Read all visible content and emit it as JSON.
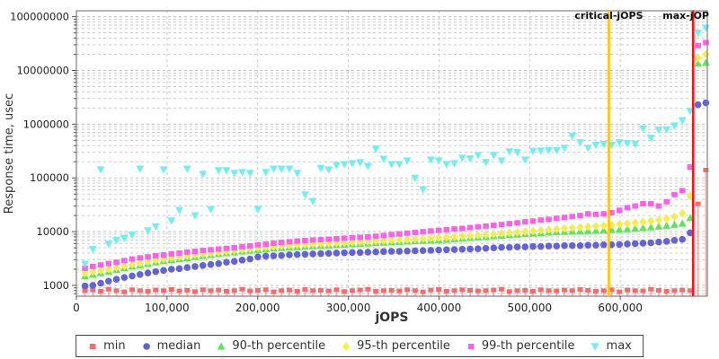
{
  "chart_data": {
    "type": "scatter",
    "title": "",
    "xlabel": "jOPS",
    "ylabel": "Response time, usec",
    "grid": true,
    "legend_position": "bottom",
    "xlim": [
      0,
      696000
    ],
    "ylim_log": [
      630,
      129000000
    ],
    "x_ticks": [
      {
        "value": 0,
        "label": "0"
      },
      {
        "value": 100000,
        "label": "100,000"
      },
      {
        "value": 200000,
        "label": "200,000"
      },
      {
        "value": 300000,
        "label": "300,000"
      },
      {
        "value": 400000,
        "label": "400,000"
      },
      {
        "value": 500000,
        "label": "500,000"
      },
      {
        "value": 600000,
        "label": "600,000"
      }
    ],
    "y_ticks": [
      {
        "value": 1000,
        "label": "1000"
      },
      {
        "value": 10000,
        "label": "10000"
      },
      {
        "value": 100000,
        "label": "100000"
      },
      {
        "value": 1000000,
        "label": "1000000"
      },
      {
        "value": 10000000,
        "label": "10000000"
      },
      {
        "value": 100000000,
        "label": "100000000"
      }
    ],
    "vertical_lines": [
      {
        "name": "critical-jops",
        "label": "critical-jOPS",
        "x": 587400,
        "color": "#FFC400"
      },
      {
        "name": "max-jops",
        "label": "max-jOP",
        "x": 680400,
        "color": "#FF1414"
      }
    ],
    "jops": [
      9500,
      18170,
      26840,
      35510,
      44180,
      52850,
      61520,
      70190,
      78860,
      87530,
      96200,
      104870,
      113540,
      122210,
      130880,
      139550,
      148220,
      156890,
      165560,
      174230,
      182900,
      191570,
      200240,
      208910,
      217580,
      226250,
      234920,
      243590,
      252260,
      260930,
      269600,
      278270,
      286940,
      295610,
      304280,
      312950,
      321620,
      330290,
      338960,
      347630,
      356300,
      364970,
      373640,
      382310,
      390980,
      399650,
      408320,
      416990,
      425660,
      434330,
      443000,
      451670,
      460340,
      469010,
      477680,
      486350,
      495020,
      503690,
      512360,
      521030,
      529700,
      538370,
      547040,
      555710,
      564380,
      573050,
      581720,
      590390,
      599060,
      607730,
      616400,
      625070,
      633740,
      642410,
      651080,
      659750,
      668420,
      677090,
      685760,
      694430
    ],
    "series": [
      {
        "name": "min",
        "marker": "square-stem",
        "color": "#FA6A6A",
        "values": [
          800,
          820,
          780,
          850,
          800,
          760,
          830,
          800,
          780,
          820,
          800,
          840,
          790,
          810,
          770,
          830,
          800,
          820,
          780,
          800,
          850,
          790,
          810,
          830,
          760,
          800,
          820,
          780,
          840,
          800,
          810,
          790,
          830,
          770,
          800,
          820,
          850,
          780,
          800,
          810,
          790,
          830,
          800,
          760,
          820,
          840,
          780,
          800,
          830,
          810,
          790,
          800,
          820,
          850,
          770,
          800,
          810,
          780,
          830,
          800,
          790,
          820,
          800,
          840,
          810,
          780,
          800,
          830,
          760,
          820,
          800,
          790,
          850,
          810,
          780,
          800,
          820,
          800,
          33000,
          140000
        ]
      },
      {
        "name": "median",
        "marker": "circle",
        "color": "#6262D9",
        "values": [
          980,
          1000,
          1100,
          1200,
          1300,
          1400,
          1500,
          1600,
          1700,
          1800,
          1900,
          2000,
          2050,
          2150,
          2250,
          2350,
          2450,
          2550,
          2700,
          2800,
          2950,
          3100,
          3400,
          3500,
          3550,
          3600,
          3700,
          3750,
          3800,
          3850,
          3900,
          3950,
          4000,
          4050,
          4100,
          4100,
          4150,
          4200,
          4250,
          4300,
          4300,
          4350,
          4400,
          4450,
          4500,
          4550,
          4600,
          4650,
          4700,
          4750,
          4800,
          4900,
          5000,
          5100,
          5100,
          5200,
          5200,
          5300,
          5300,
          5400,
          5400,
          5500,
          5500,
          5500,
          5600,
          5600,
          5700,
          5700,
          5800,
          5900,
          6000,
          6100,
          6200,
          6400,
          6600,
          6900,
          7200,
          9500,
          2300000,
          2500000
        ]
      },
      {
        "name": "90-th percentile",
        "marker": "triangle-up",
        "color": "#5CE65C",
        "values": [
          1490,
          1600,
          1700,
          1800,
          1950,
          2100,
          2250,
          2400,
          2550,
          2700,
          2850,
          3000,
          3100,
          3250,
          3400,
          3550,
          3700,
          3850,
          4000,
          4150,
          4300,
          4450,
          4600,
          4750,
          4900,
          5000,
          5100,
          5200,
          5300,
          5400,
          5500,
          5600,
          5700,
          5800,
          5900,
          6000,
          6100,
          6200,
          6300,
          6400,
          6500,
          6600,
          6700,
          6800,
          6900,
          7000,
          7100,
          7300,
          7500,
          7700,
          7900,
          8100,
          8300,
          8500,
          8700,
          8900,
          9100,
          9300,
          9500,
          9700,
          9900,
          10000,
          10200,
          10300,
          10400,
          10500,
          10600,
          10800,
          11000,
          11200,
          11500,
          11800,
          12100,
          12500,
          13000,
          13500,
          14200,
          18000,
          13500000,
          14000000
        ]
      },
      {
        "name": "95-th percentile",
        "marker": "diamond",
        "color": "#EFEF4F",
        "values": [
          1700,
          1800,
          1900,
          2000,
          2150,
          2300,
          2450,
          2600,
          2750,
          2950,
          3100,
          3250,
          3400,
          3550,
          3700,
          3850,
          4000,
          4150,
          4300,
          4500,
          4650,
          4800,
          5000,
          5150,
          5300,
          5450,
          5550,
          5650,
          5750,
          5850,
          5950,
          6050,
          6150,
          6250,
          6350,
          6450,
          6550,
          6700,
          6800,
          6900,
          7000,
          7100,
          7250,
          7400,
          7550,
          7700,
          7850,
          8000,
          8200,
          8400,
          8600,
          8800,
          9000,
          9300,
          9500,
          9700,
          10000,
          10300,
          10600,
          10900,
          11200,
          11500,
          11800,
          12100,
          12400,
          12700,
          13000,
          13400,
          13800,
          14200,
          14700,
          15200,
          15800,
          16500,
          17500,
          19000,
          22000,
          46000,
          17000000,
          20000000
        ]
      },
      {
        "name": "99-th percentile",
        "marker": "square",
        "color": "#FF5FEB",
        "values": [
          2080,
          2250,
          2400,
          2550,
          2700,
          2900,
          3100,
          3250,
          3400,
          3550,
          3700,
          3850,
          4000,
          4150,
          4300,
          4450,
          4600,
          4750,
          4900,
          5050,
          5250,
          5450,
          5700,
          5900,
          6100,
          6300,
          6500,
          6700,
          6850,
          7000,
          7100,
          7250,
          7400,
          7550,
          7700,
          7850,
          8000,
          8200,
          8500,
          8800,
          9100,
          9400,
          9700,
          10000,
          10300,
          10600,
          10900,
          11200,
          11500,
          11900,
          12300,
          12700,
          13100,
          13600,
          14100,
          14600,
          15200,
          15800,
          16400,
          17000,
          17700,
          18400,
          19100,
          20000,
          21500,
          21000,
          21500,
          22500,
          25000,
          28000,
          30000,
          33000,
          33000,
          30000,
          36000,
          49000,
          58000,
          160000,
          29000000,
          33000000
        ]
      },
      {
        "name": "max",
        "marker": "triangle-down",
        "color": "#6FEFEF",
        "values": [
          2500,
          4700,
          143000,
          5900,
          6900,
          7600,
          8700,
          148000,
          10500,
          12500,
          143000,
          16000,
          25000,
          148000,
          20000,
          118000,
          26000,
          138000,
          138000,
          123000,
          128000,
          123000,
          26000,
          128000,
          148000,
          148000,
          148000,
          123000,
          49000,
          37000,
          152000,
          143000,
          172000,
          180000,
          187000,
          194000,
          166000,
          347000,
          225000,
          180000,
          180000,
          210000,
          100000,
          61000,
          218000,
          210000,
          180000,
          187000,
          236000,
          230000,
          264000,
          196000,
          264000,
          210000,
          310000,
          300000,
          218000,
          317000,
          320000,
          327000,
          327000,
          362000,
          600000,
          458000,
          362000,
          410000,
          426000,
          410000,
          458000,
          442000,
          426000,
          835000,
          555000,
          780000,
          800000,
          940000,
          1180000,
          1750000,
          50000000,
          62000000
        ]
      }
    ],
    "colors": {
      "grid": "#CCCCCC",
      "grid_major": "#BFBFBF",
      "frame": "#808080",
      "text": "#222222"
    }
  }
}
